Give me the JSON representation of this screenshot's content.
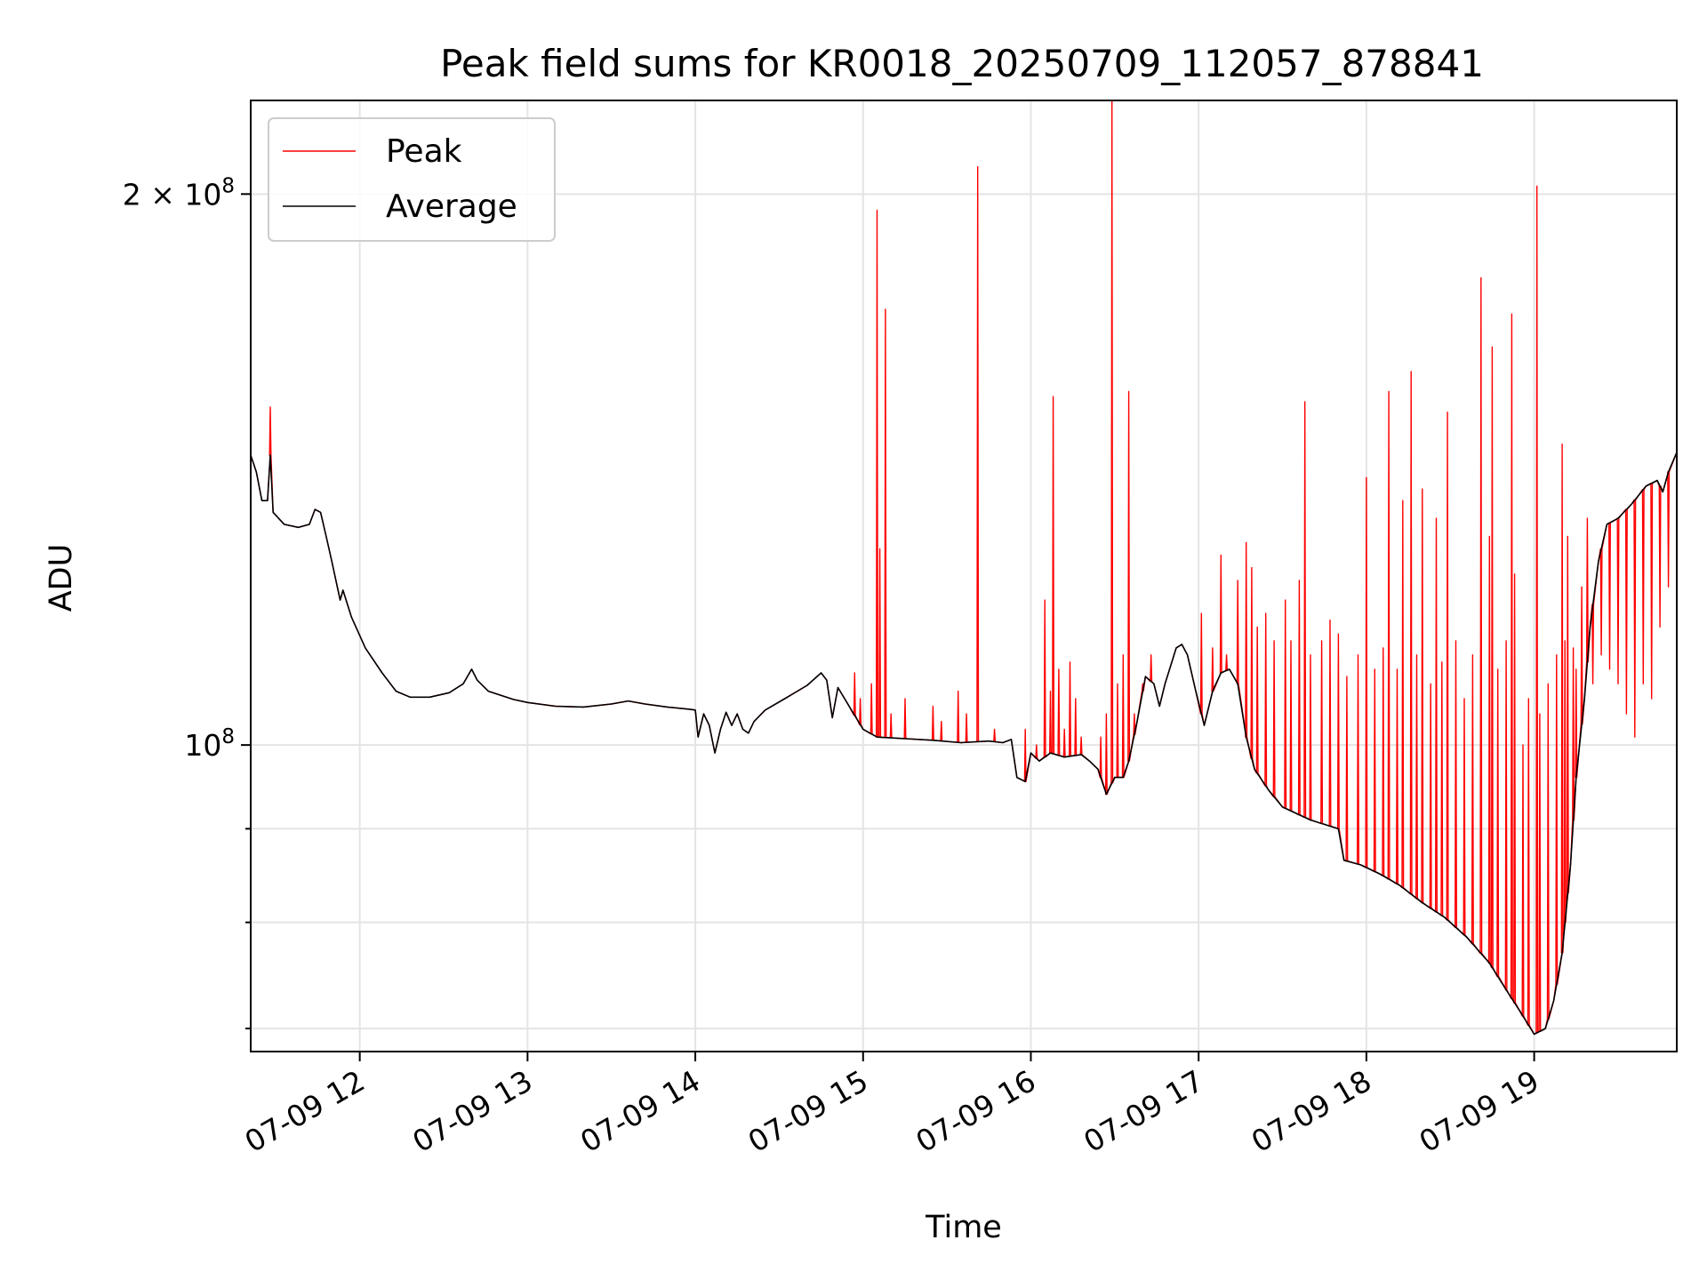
{
  "chart_data": {
    "type": "line",
    "title": "Peak field sums for KR0018_20250709_112057_878841",
    "xlabel": "Time",
    "ylabel": "ADU",
    "y_scale": "log",
    "grid": true,
    "legend_position": "upper-left",
    "x_range": [
      "07-09 11:21",
      "07-09 19:51"
    ],
    "ylim": [
      68000000,
      225000000
    ],
    "x_ticks": [
      "07-09 12",
      "07-09 13",
      "07-09 14",
      "07-09 15",
      "07-09 16",
      "07-09 17",
      "07-09 18",
      "07-09 19"
    ],
    "y_ticks": [
      {
        "value": 100000000,
        "base": "10",
        "exp": "8",
        "mantissa": ""
      },
      {
        "value": 200000000,
        "base": "10",
        "exp": "8",
        "mantissa": "2"
      }
    ],
    "y_minor_ticks": [
      60000000,
      70000000,
      80000000,
      90000000
    ],
    "series": [
      {
        "name": "Average",
        "color": "#000000",
        "points": [
          [
            "07-09 11:21",
            144000000
          ],
          [
            "07-09 11:23",
            141000000
          ],
          [
            "07-09 11:25",
            136000000
          ],
          [
            "07-09 11:27",
            136000000
          ],
          [
            "07-09 11:28",
            144000000
          ],
          [
            "07-09 11:29",
            134000000
          ],
          [
            "07-09 11:33",
            132000000
          ],
          [
            "07-09 11:38",
            131500000
          ],
          [
            "07-09 11:42",
            132000000
          ],
          [
            "07-09 11:44",
            134500000
          ],
          [
            "07-09 11:46",
            134000000
          ],
          [
            "07-09 11:48",
            130000000
          ],
          [
            "07-09 11:50",
            126000000
          ],
          [
            "07-09 11:53",
            120000000
          ],
          [
            "07-09 11:54",
            121500000
          ],
          [
            "07-09 11:57",
            117500000
          ],
          [
            "07-09 12:02",
            113000000
          ],
          [
            "07-09 12:08",
            109500000
          ],
          [
            "07-09 12:13",
            107000000
          ],
          [
            "07-09 12:18",
            106200000
          ],
          [
            "07-09 12:25",
            106200000
          ],
          [
            "07-09 12:32",
            106800000
          ],
          [
            "07-09 12:37",
            108000000
          ],
          [
            "07-09 12:40",
            110000000
          ],
          [
            "07-09 12:42",
            108500000
          ],
          [
            "07-09 12:46",
            107000000
          ],
          [
            "07-09 12:50",
            106500000
          ],
          [
            "07-09 12:55",
            105900000
          ],
          [
            "07-09 13:00",
            105500000
          ],
          [
            "07-09 13:10",
            105000000
          ],
          [
            "07-09 13:20",
            104900000
          ],
          [
            "07-09 13:30",
            105300000
          ],
          [
            "07-09 13:36",
            105700000
          ],
          [
            "07-09 13:42",
            105300000
          ],
          [
            "07-09 13:50",
            104900000
          ],
          [
            "07-09 13:58",
            104600000
          ],
          [
            "07-09 14:00",
            104500000
          ],
          [
            "07-09 14:01",
            101000000
          ],
          [
            "07-09 14:03",
            104000000
          ],
          [
            "07-09 14:05",
            102500000
          ],
          [
            "07-09 14:07",
            99000000
          ],
          [
            "07-09 14:09",
            102000000
          ],
          [
            "07-09 14:11",
            104200000
          ],
          [
            "07-09 14:13",
            102500000
          ],
          [
            "07-09 14:15",
            104000000
          ],
          [
            "07-09 14:17",
            102000000
          ],
          [
            "07-09 14:19",
            101500000
          ],
          [
            "07-09 14:21",
            103000000
          ],
          [
            "07-09 14:25",
            104500000
          ],
          [
            "07-09 14:32",
            106000000
          ],
          [
            "07-09 14:40",
            107800000
          ],
          [
            "07-09 14:45",
            109500000
          ],
          [
            "07-09 14:47",
            108500000
          ],
          [
            "07-09 14:49",
            103500000
          ],
          [
            "07-09 14:51",
            107500000
          ],
          [
            "07-09 14:55",
            105000000
          ],
          [
            "07-09 15:00",
            102000000
          ],
          [
            "07-09 15:05",
            101000000
          ],
          [
            "07-09 15:15",
            100800000
          ],
          [
            "07-09 15:25",
            100600000
          ],
          [
            "07-09 15:35",
            100300000
          ],
          [
            "07-09 15:45",
            100500000
          ],
          [
            "07-09 15:50",
            100300000
          ],
          [
            "07-09 15:53",
            100700000
          ],
          [
            "07-09 15:55",
            96000000
          ],
          [
            "07-09 15:58",
            95500000
          ],
          [
            "07-09 16:00",
            99000000
          ],
          [
            "07-09 16:03",
            98000000
          ],
          [
            "07-09 16:07",
            99000000
          ],
          [
            "07-09 16:12",
            98500000
          ],
          [
            "07-09 16:18",
            98800000
          ],
          [
            "07-09 16:21",
            98000000
          ],
          [
            "07-09 16:24",
            97000000
          ],
          [
            "07-09 16:27",
            94000000
          ],
          [
            "07-09 16:30",
            96000000
          ],
          [
            "07-09 16:33",
            96000000
          ],
          [
            "07-09 16:35",
            98000000
          ],
          [
            "07-09 16:38",
            103000000
          ],
          [
            "07-09 16:41",
            109000000
          ],
          [
            "07-09 16:44",
            108000000
          ],
          [
            "07-09 16:46",
            105000000
          ],
          [
            "07-09 16:48",
            108000000
          ],
          [
            "07-09 16:52",
            113000000
          ],
          [
            "07-09 16:54",
            113500000
          ],
          [
            "07-09 16:56",
            112000000
          ],
          [
            "07-09 16:59",
            107000000
          ],
          [
            "07-09 17:02",
            102500000
          ],
          [
            "07-09 17:05",
            107000000
          ],
          [
            "07-09 17:08",
            109500000
          ],
          [
            "07-09 17:11",
            110000000
          ],
          [
            "07-09 17:14",
            108000000
          ],
          [
            "07-09 17:17",
            101000000
          ],
          [
            "07-09 17:20",
            97000000
          ],
          [
            "07-09 17:25",
            94500000
          ],
          [
            "07-09 17:30",
            92500000
          ],
          [
            "07-09 17:40",
            91000000
          ],
          [
            "07-09 17:50",
            90000000
          ],
          [
            "07-09 17:52",
            86500000
          ],
          [
            "07-09 17:58",
            86000000
          ],
          [
            "07-09 18:05",
            85000000
          ],
          [
            "07-09 18:12",
            83800000
          ],
          [
            "07-09 18:20",
            82000000
          ],
          [
            "07-09 18:28",
            80500000
          ],
          [
            "07-09 18:36",
            78500000
          ],
          [
            "07-09 18:44",
            76000000
          ],
          [
            "07-09 18:50",
            73500000
          ],
          [
            "07-09 18:55",
            71500000
          ],
          [
            "07-09 19:00",
            69500000
          ],
          [
            "07-09 19:04",
            70000000
          ],
          [
            "07-09 19:07",
            72500000
          ],
          [
            "07-09 19:10",
            77000000
          ],
          [
            "07-09 19:13",
            86000000
          ],
          [
            "07-09 19:15",
            96000000
          ],
          [
            "07-09 19:18",
            106000000
          ],
          [
            "07-09 19:20",
            116000000
          ],
          [
            "07-09 19:23",
            126000000
          ],
          [
            "07-09 19:26",
            132000000
          ],
          [
            "07-09 19:30",
            133000000
          ],
          [
            "07-09 19:35",
            135500000
          ],
          [
            "07-09 19:40",
            138500000
          ],
          [
            "07-09 19:44",
            139500000
          ],
          [
            "07-09 19:46",
            137500000
          ],
          [
            "07-09 19:48",
            141000000
          ],
          [
            "07-09 19:51",
            144500000
          ]
        ]
      },
      {
        "name": "Peak",
        "color": "#ff0000",
        "baseline": "Average",
        "spikes": [
          [
            "07-09 11:28",
            153000000
          ],
          [
            "07-09 14:57",
            109500000
          ],
          [
            "07-09 14:59",
            106000000
          ],
          [
            "07-09 15:03",
            108000000
          ],
          [
            "07-09 15:05",
            196000000
          ],
          [
            "07-09 15:06",
            128000000
          ],
          [
            "07-09 15:08",
            173000000
          ],
          [
            "07-09 15:10",
            104000000
          ],
          [
            "07-09 15:15",
            106000000
          ],
          [
            "07-09 15:25",
            105000000
          ],
          [
            "07-09 15:28",
            103000000
          ],
          [
            "07-09 15:34",
            107000000
          ],
          [
            "07-09 15:37",
            104000000
          ],
          [
            "07-09 15:41",
            207000000
          ],
          [
            "07-09 15:47",
            102000000
          ],
          [
            "07-09 15:58",
            102000000
          ],
          [
            "07-09 16:02",
            100000000
          ],
          [
            "07-09 16:05",
            120000000
          ],
          [
            "07-09 16:07",
            107000000
          ],
          [
            "07-09 16:08",
            155000000
          ],
          [
            "07-09 16:10",
            110000000
          ],
          [
            "07-09 16:12",
            102000000
          ],
          [
            "07-09 16:14",
            111000000
          ],
          [
            "07-09 16:16",
            106000000
          ],
          [
            "07-09 16:18",
            101000000
          ],
          [
            "07-09 16:25",
            101000000
          ],
          [
            "07-09 16:27",
            104000000
          ],
          [
            "07-09 16:29",
            225000000
          ],
          [
            "07-09 16:31",
            108000000
          ],
          [
            "07-09 16:33",
            112000000
          ],
          [
            "07-09 16:35",
            156000000
          ],
          [
            "07-09 16:37",
            104000000
          ],
          [
            "07-09 16:40",
            108000000
          ],
          [
            "07-09 16:43",
            112000000
          ],
          [
            "07-09 17:01",
            118000000
          ],
          [
            "07-09 17:05",
            113000000
          ],
          [
            "07-09 17:08",
            127000000
          ],
          [
            "07-09 17:10",
            112000000
          ],
          [
            "07-09 17:14",
            123000000
          ],
          [
            "07-09 17:17",
            129000000
          ],
          [
            "07-09 17:19",
            125000000
          ],
          [
            "07-09 17:21",
            116000000
          ],
          [
            "07-09 17:24",
            118000000
          ],
          [
            "07-09 17:27",
            114000000
          ],
          [
            "07-09 17:31",
            120000000
          ],
          [
            "07-09 17:33",
            114000000
          ],
          [
            "07-09 17:36",
            123000000
          ],
          [
            "07-09 17:38",
            154000000
          ],
          [
            "07-09 17:40",
            112000000
          ],
          [
            "07-09 17:44",
            114000000
          ],
          [
            "07-09 17:47",
            117000000
          ],
          [
            "07-09 17:50",
            115000000
          ],
          [
            "07-09 17:53",
            109000000
          ],
          [
            "07-09 17:57",
            112000000
          ],
          [
            "07-09 18:00",
            140000000
          ],
          [
            "07-09 18:03",
            110000000
          ],
          [
            "07-09 18:06",
            113000000
          ],
          [
            "07-09 18:08",
            156000000
          ],
          [
            "07-09 18:11",
            110000000
          ],
          [
            "07-09 18:13",
            136000000
          ],
          [
            "07-09 18:16",
            160000000
          ],
          [
            "07-09 18:18",
            112000000
          ],
          [
            "07-09 18:20",
            138000000
          ],
          [
            "07-09 18:23",
            108000000
          ],
          [
            "07-09 18:25",
            133000000
          ],
          [
            "07-09 18:27",
            111000000
          ],
          [
            "07-09 18:29",
            152000000
          ],
          [
            "07-09 18:32",
            114000000
          ],
          [
            "07-09 18:35",
            106000000
          ],
          [
            "07-09 18:38",
            112000000
          ],
          [
            "07-09 18:41",
            180000000
          ],
          [
            "07-09 18:44",
            130000000
          ],
          [
            "07-09 18:47",
            110000000
          ],
          [
            "07-09 18:50",
            114000000
          ],
          [
            "07-09 18:53",
            124000000
          ],
          [
            "07-09 18:56",
            100000000
          ],
          [
            "07-09 18:58",
            106000000
          ],
          [
            "07-09 19:02",
            104000000
          ],
          [
            "07-09 19:05",
            108000000
          ],
          [
            "07-09 19:08",
            112000000
          ],
          [
            "07-09 19:11",
            114000000
          ],
          [
            "07-09 19:14",
            113000000
          ],
          [
            "07-09 19:17",
            122000000
          ],
          [
            "07-09 19:21",
            108000000
          ],
          [
            "07-09 19:24",
            112000000
          ],
          [
            "07-09 19:27",
            110000000
          ],
          [
            "07-09 19:30",
            108000000
          ],
          [
            "07-09 19:33",
            104000000
          ],
          [
            "07-09 19:36",
            101000000
          ],
          [
            "07-09 19:39",
            108000000
          ],
          [
            "07-09 19:42",
            106000000
          ],
          [
            "07-09 19:45",
            116000000
          ],
          [
            "07-09 19:48",
            122000000
          ],
          [
            "07-09 18:45",
            165000000
          ],
          [
            "07-09 18:52",
            172000000
          ],
          [
            "07-09 19:01",
            202000000
          ],
          [
            "07-09 19:10",
            146000000
          ],
          [
            "07-09 19:12",
            130000000
          ],
          [
            "07-09 19:15",
            110000000
          ],
          [
            "07-09 19:19",
            133000000
          ]
        ]
      }
    ],
    "legend": [
      {
        "name": "Peak",
        "color": "#ff0000"
      },
      {
        "name": "Average",
        "color": "#000000"
      }
    ]
  }
}
